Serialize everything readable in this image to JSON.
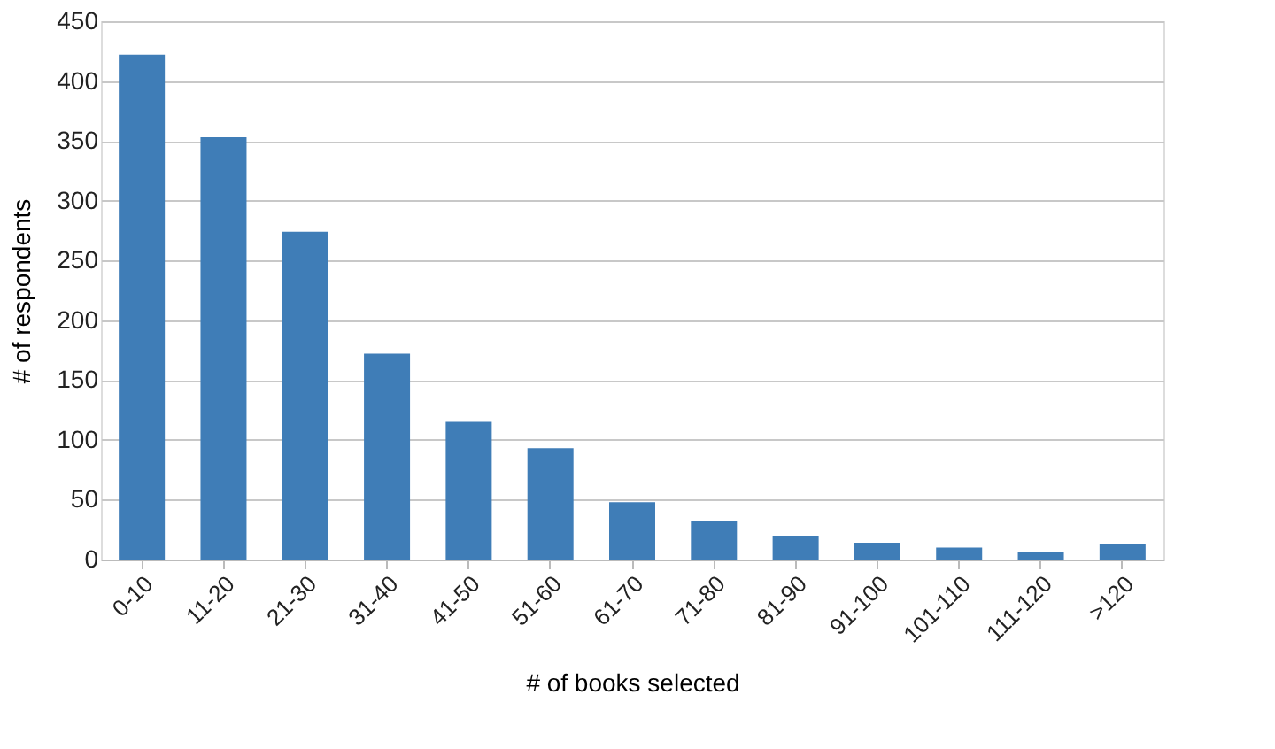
{
  "chart_data": {
    "type": "bar",
    "xlabel": "# of books selected",
    "ylabel": "# of respondents",
    "categories": [
      "0-10",
      "11-20",
      "21-30",
      "31-40",
      "41-50",
      "51-60",
      "61-70",
      "71-80",
      "81-90",
      "91-100",
      "101-110",
      "111-120",
      ">120"
    ],
    "values": [
      422,
      353,
      274,
      172,
      115,
      93,
      48,
      32,
      20,
      14,
      10,
      6,
      13
    ],
    "color": "#3f7db7",
    "ylim": [
      0,
      450
    ],
    "yticks": [
      0,
      50,
      100,
      150,
      200,
      250,
      300,
      350,
      400,
      450
    ],
    "grid": "y"
  }
}
